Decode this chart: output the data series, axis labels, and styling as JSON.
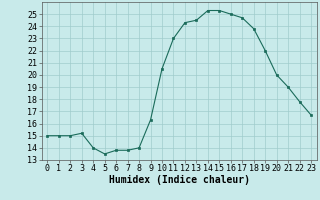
{
  "x": [
    0,
    1,
    2,
    3,
    4,
    5,
    6,
    7,
    8,
    9,
    10,
    11,
    12,
    13,
    14,
    15,
    16,
    17,
    18,
    19,
    20,
    21,
    22,
    23
  ],
  "y": [
    15,
    15,
    15,
    15.2,
    14.0,
    13.5,
    13.8,
    13.8,
    14.0,
    16.3,
    20.5,
    23.0,
    24.3,
    24.5,
    25.3,
    25.3,
    25.0,
    24.7,
    23.8,
    22.0,
    20.0,
    19.0,
    17.8,
    16.7
  ],
  "line_color": "#1a6b5a",
  "bg_color": "#c8eaea",
  "grid_color": "#a0cccc",
  "xlabel": "Humidex (Indice chaleur)",
  "ylim": [
    13,
    26
  ],
  "yticks": [
    13,
    14,
    15,
    16,
    17,
    18,
    19,
    20,
    21,
    22,
    23,
    24,
    25
  ],
  "xticks": [
    0,
    1,
    2,
    3,
    4,
    5,
    6,
    7,
    8,
    9,
    10,
    11,
    12,
    13,
    14,
    15,
    16,
    17,
    18,
    19,
    20,
    21,
    22,
    23
  ],
  "xlabel_fontsize": 7,
  "tick_fontsize": 6,
  "marker_size": 2.0,
  "line_width": 0.8
}
